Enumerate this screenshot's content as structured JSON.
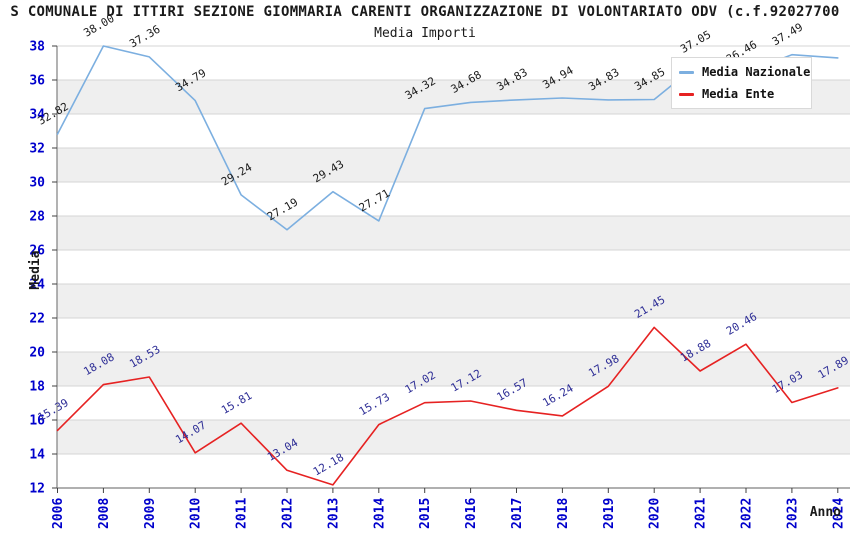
{
  "title": "S COMUNALE DI ITTIRI SEZIONE GIOMMARIA CARENTI ORGANIZZAZIONE DI VOLONTARIATO ODV (c.f.92027700",
  "subtitle": "Media Importi",
  "axes": {
    "ylabel": "Media",
    "xlabel": "Anno",
    "tick_label_color": "#0000cc"
  },
  "legend": {
    "items": [
      {
        "label": "Media Nazionale",
        "color": "#7cafe0"
      },
      {
        "label": "Media Ente",
        "color": "#e62222"
      }
    ]
  },
  "colors": {
    "nazionale_line": "#7cafe0",
    "ente_line": "#e62222",
    "nazionale_label_text": "#1a1a1a",
    "ente_label_text": "#2e2e96",
    "gridline": "#d6d6d6",
    "band": "#efefef",
    "spine": "#808080",
    "tick_mark": "#404040"
  },
  "chart_data": {
    "type": "line",
    "title": "Media Importi",
    "xlabel": "Anno",
    "ylabel": "Media",
    "ylim": [
      12,
      38
    ],
    "y_ticks": [
      12,
      14,
      16,
      18,
      20,
      22,
      24,
      26,
      28,
      30,
      32,
      34,
      36,
      38
    ],
    "grid": true,
    "band_color": "#efefef",
    "legend_position": "top-right",
    "categories": [
      "2006",
      "2008",
      "2009",
      "2010",
      "2011",
      "2012",
      "2013",
      "2014",
      "2015",
      "2016",
      "2017",
      "2018",
      "2019",
      "2020",
      "2021",
      "2022",
      "2023",
      "2024"
    ],
    "series": [
      {
        "name": "Media Nazionale",
        "color": "#7cafe0",
        "label_color": "#1a1a1a",
        "values": [
          32.82,
          38.0,
          37.36,
          34.79,
          29.24,
          27.19,
          29.43,
          27.71,
          34.32,
          34.68,
          34.83,
          34.94,
          34.83,
          34.85,
          37.05,
          36.46,
          37.49,
          37.3
        ],
        "labels": [
          "32.82",
          "38.00",
          "37.36",
          "34.79",
          "29.24",
          "27.19",
          "29.43",
          "27.71",
          "34.32",
          "34.68",
          "34.83",
          "34.94",
          "34.83",
          "34.85",
          "37.05",
          "36.46",
          "37.49",
          ""
        ]
      },
      {
        "name": "Media Ente",
        "color": "#e62222",
        "label_color": "#2e2e96",
        "values": [
          15.39,
          18.08,
          18.53,
          14.07,
          15.81,
          13.04,
          12.18,
          15.73,
          17.02,
          17.12,
          16.57,
          16.24,
          17.98,
          21.45,
          18.88,
          20.46,
          17.03,
          17.89
        ],
        "labels": [
          "15.39",
          "18.08",
          "18.53",
          "14.07",
          "15.81",
          "13.04",
          "12.18",
          "15.73",
          "17.02",
          "17.12",
          "16.57",
          "16.24",
          "17.98",
          "21.45",
          "18.88",
          "20.46",
          "17.03",
          "17.89"
        ]
      }
    ]
  }
}
